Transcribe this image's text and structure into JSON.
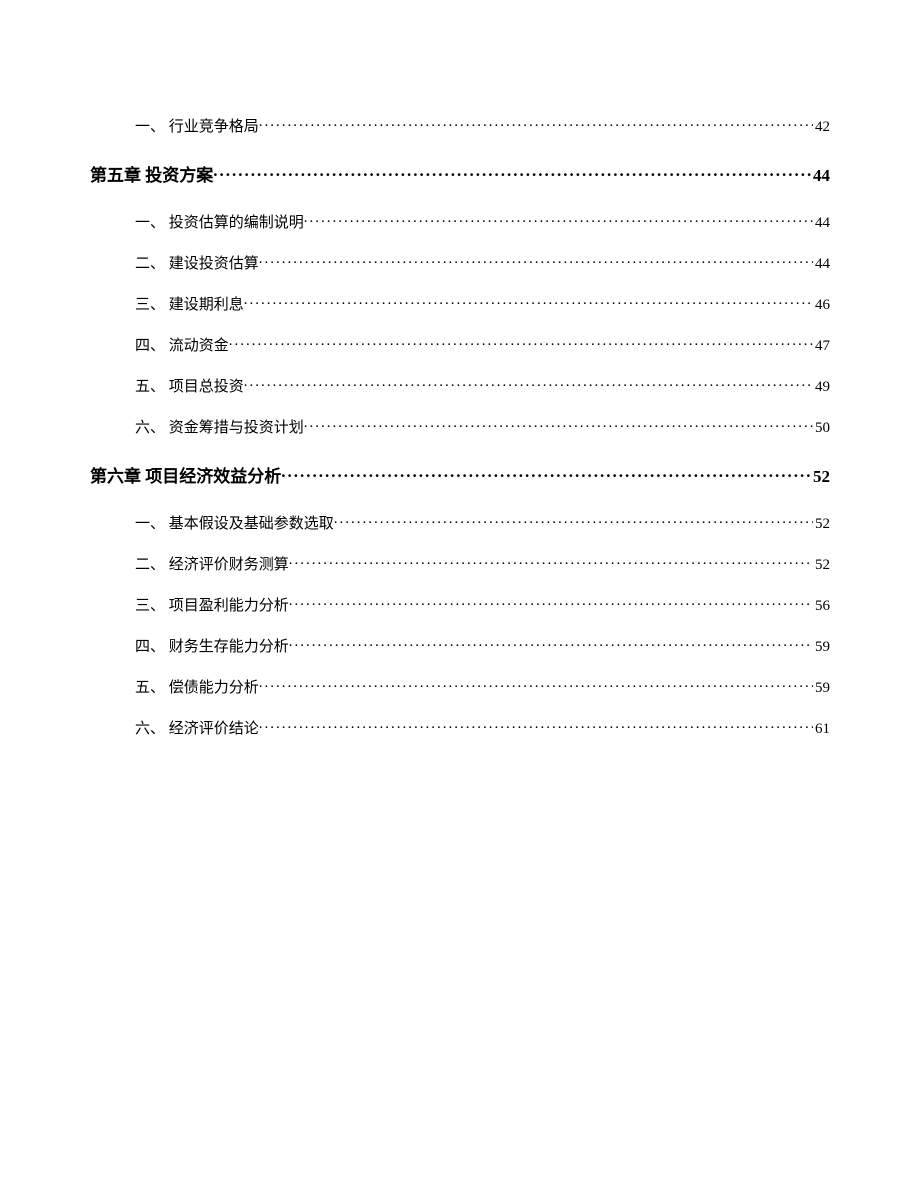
{
  "toc": {
    "entries": [
      {
        "type": "sub",
        "label": "一、 行业竞争格局",
        "page": "42"
      },
      {
        "type": "chapter",
        "label": "第五章 投资方案 ",
        "page": "44"
      },
      {
        "type": "sub",
        "label": "一、 投资估算的编制说明",
        "page": "44"
      },
      {
        "type": "sub",
        "label": "二、 建设投资估算",
        "page": "44"
      },
      {
        "type": "sub",
        "label": "三、 建设期利息",
        "page": "46"
      },
      {
        "type": "sub",
        "label": "四、 流动资金",
        "page": "47"
      },
      {
        "type": "sub",
        "label": "五、 项目总投资",
        "page": "49"
      },
      {
        "type": "sub",
        "label": "六、 资金筹措与投资计划",
        "page": "50"
      },
      {
        "type": "chapter",
        "label": "第六章 项目经济效益分析 ",
        "page": "52"
      },
      {
        "type": "sub",
        "label": "一、 基本假设及基础参数选取",
        "page": "52"
      },
      {
        "type": "sub",
        "label": "二、 经济评价财务测算",
        "page": "52"
      },
      {
        "type": "sub",
        "label": "三、 项目盈利能力分析",
        "page": "56"
      },
      {
        "type": "sub",
        "label": "四、 财务生存能力分析",
        "page": "59"
      },
      {
        "type": "sub",
        "label": "五、 偿债能力分析",
        "page": "59"
      },
      {
        "type": "sub",
        "label": "六、 经济评价结论",
        "page": "61"
      }
    ]
  }
}
